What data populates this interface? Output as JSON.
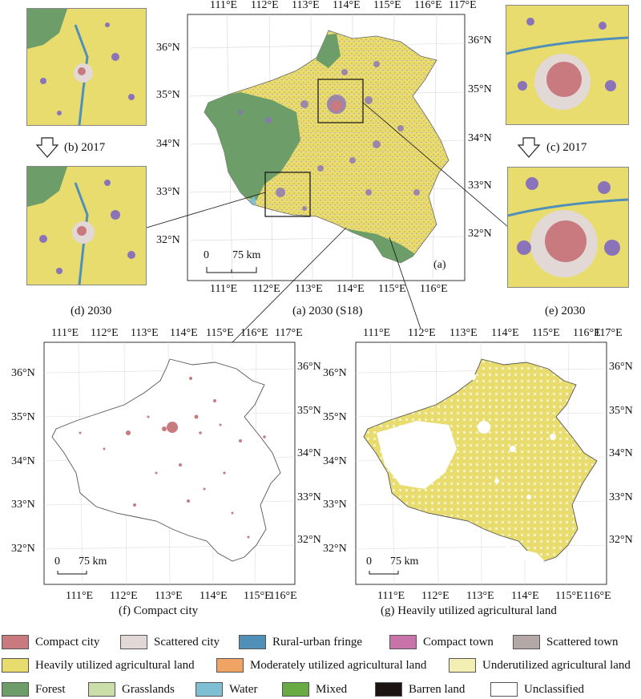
{
  "main_map": {
    "caption": "(a) 2030 (S18)",
    "panel_label": "(a)",
    "lon_ticks_top": [
      "111°E",
      "112°E",
      "113°E",
      "114°E",
      "115°E",
      "116°E",
      "117°E"
    ],
    "lon_ticks_bottom": [
      "111°E",
      "112°E",
      "113°E",
      "114°E",
      "115°E",
      "116°E"
    ],
    "lat_ticks_left": [
      "36°N",
      "35°N",
      "34°N",
      "33°N",
      "32°N"
    ],
    "lat_ticks_right": [
      "36°N",
      "35°N",
      "34°N",
      "33°N",
      "32°N"
    ],
    "scale_bar": {
      "start": "0",
      "end": "75 km"
    }
  },
  "inset_left": {
    "label_2017": "(b) 2017",
    "label_2030": "(d) 2030"
  },
  "inset_right": {
    "label_2017": "(c) 2017",
    "label_2030": "(e) 2030"
  },
  "map_f": {
    "caption": "(f) Compact city",
    "lon_ticks_top": [
      "111°E",
      "112°E",
      "113°E",
      "114°E",
      "115°E",
      "116°E",
      "117°E"
    ],
    "lon_ticks_bottom": [
      "111°E",
      "112°E",
      "113°E",
      "114°E",
      "115°E",
      "116°E"
    ],
    "lat_ticks_left": [
      "36°N",
      "35°N",
      "34°N",
      "33°N",
      "32°N"
    ],
    "lat_ticks_right": [
      "36°N",
      "35°N",
      "34°N",
      "33°N",
      "32°N"
    ],
    "scale_bar": {
      "start": "0",
      "end": "75 km"
    }
  },
  "map_g": {
    "caption": "(g) Heavily utilized agricultural land",
    "lon_ticks_top": [
      "111°E",
      "112°E",
      "113°E",
      "114°E",
      "115°E",
      "116°E",
      "117°E"
    ],
    "lon_ticks_bottom": [
      "111°E",
      "112°E",
      "113°E",
      "114°E",
      "115°E",
      "116°E"
    ],
    "lat_ticks_left": [
      "36°N",
      "35°N",
      "34°N",
      "33°N",
      "32°N"
    ],
    "lat_ticks_right": [
      "36°N",
      "35°N",
      "34°N",
      "33°N",
      "32°N"
    ],
    "scale_bar": {
      "start": "0",
      "end": "75 km"
    }
  },
  "legend": [
    {
      "label": "Compact city",
      "color": "#c97a7e"
    },
    {
      "label": "Scattered city",
      "color": "#e2d8d6"
    },
    {
      "label": "Rural-urban fringe",
      "color": "#4f8fb8"
    },
    {
      "label": "Compact town",
      "color": "#c873a9"
    },
    {
      "label": "Scattered town",
      "color": "#b3a8a6"
    },
    {
      "label": "Heavily utilized agricultural land",
      "color": "#e8dc6e"
    },
    {
      "label": "Moderately utilized agricultural land",
      "color": "#f0a463"
    },
    {
      "label": "Underutilized agricultural land",
      "color": "#f3efb3"
    },
    {
      "label": "Forest",
      "color": "#6d9d68"
    },
    {
      "label": "Grasslands",
      "color": "#c9dea8"
    },
    {
      "label": "Water",
      "color": "#7fbfd3"
    },
    {
      "label": "Mixed",
      "color": "#6aaa45"
    },
    {
      "label": "Barren land",
      "color": "#1c1412"
    },
    {
      "label": "Unclassified",
      "color": "#ffffff"
    }
  ]
}
